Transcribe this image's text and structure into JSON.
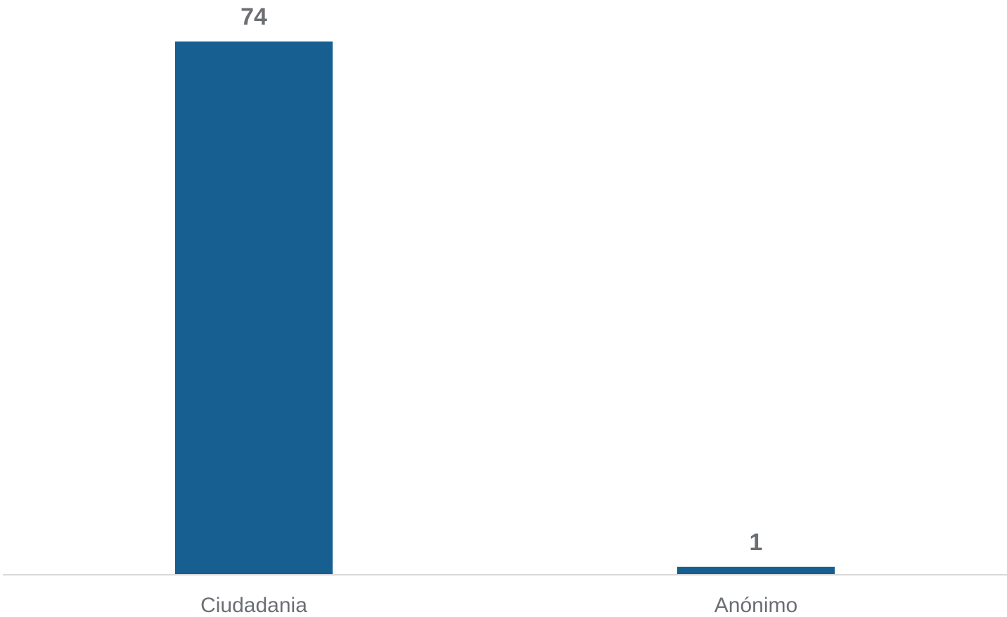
{
  "chart_data": {
    "type": "bar",
    "categories": [
      "Ciudadania",
      "Anónimo"
    ],
    "values": [
      74,
      1
    ],
    "title": "",
    "xlabel": "",
    "ylabel": "",
    "ylim": [
      0,
      74
    ],
    "grid": false,
    "legend": "none",
    "data_labels": true,
    "colors": {
      "bar": "#165f90",
      "axis": "#d9d9d9",
      "label_text": "#6b6e73"
    }
  }
}
